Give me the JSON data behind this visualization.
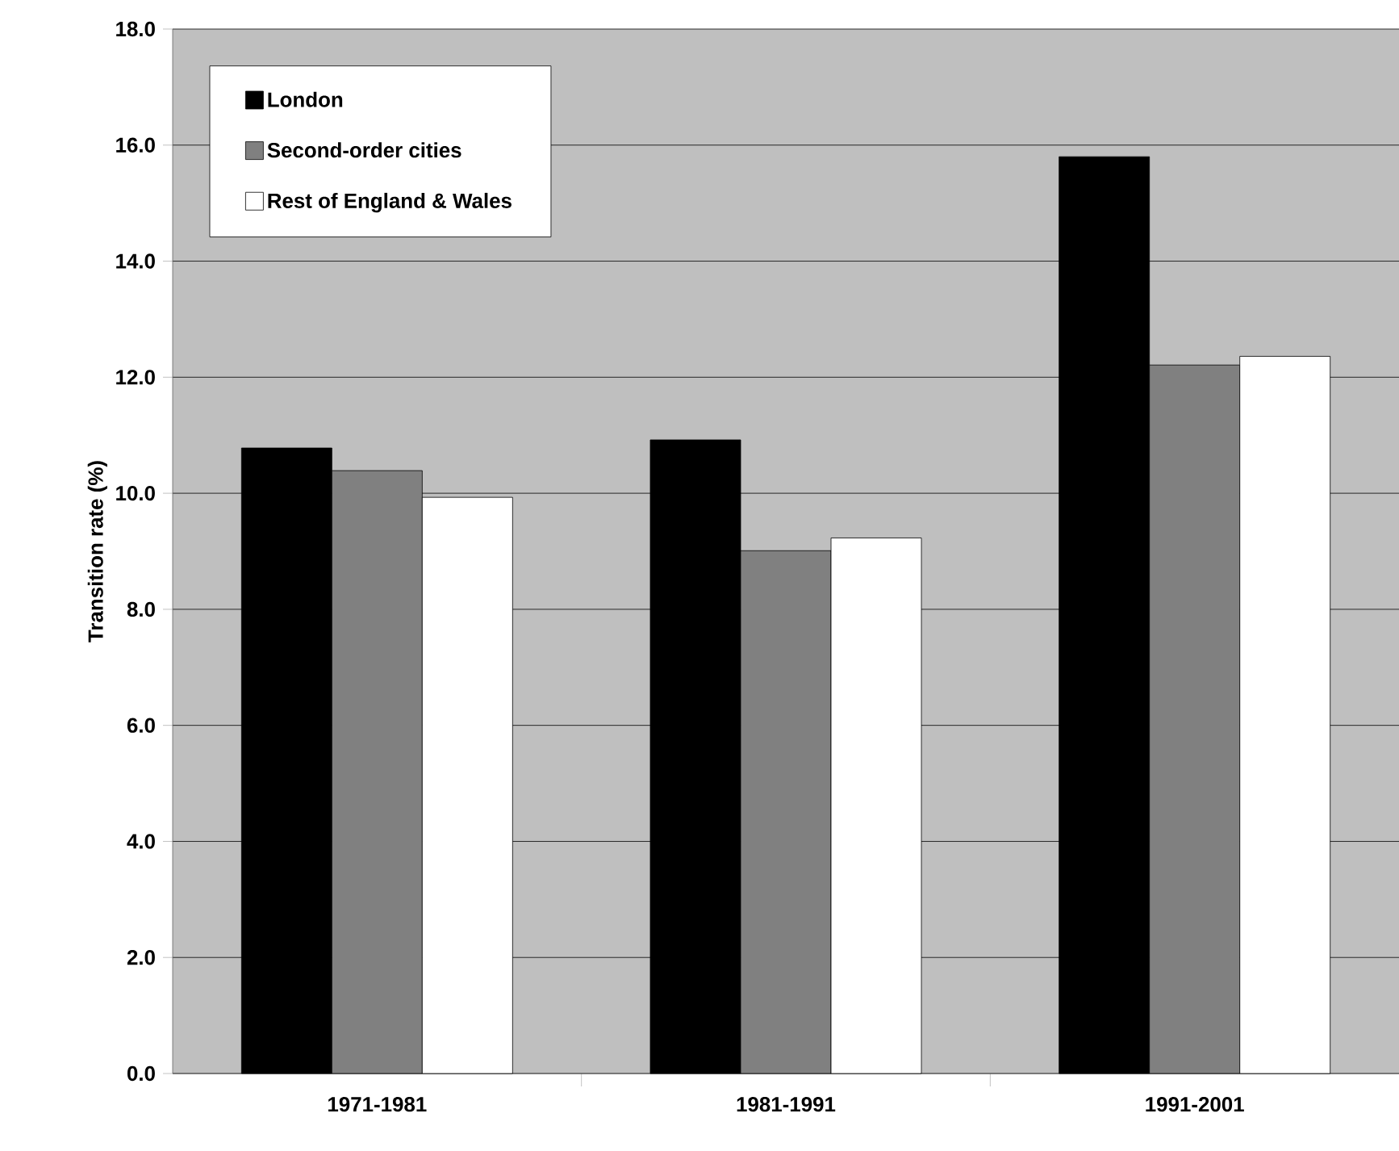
{
  "chart_data": {
    "type": "bar",
    "ylabel": "Transition rate (%)",
    "categories": [
      "1971-1981",
      "1981-1991",
      "1991-2001"
    ],
    "series": [
      {
        "name": "London",
        "color": "#000000",
        "values": [
          10.78,
          10.92,
          15.8
        ]
      },
      {
        "name": "Second-order cities",
        "color": "#808080",
        "values": [
          10.39,
          9.01,
          12.21
        ]
      },
      {
        "name": "Rest of England & Wales",
        "color": "#ffffff",
        "values": [
          9.93,
          9.23,
          12.36
        ]
      }
    ],
    "ylim": [
      0,
      18
    ],
    "yticks": [
      {
        "value": 0,
        "label": "0.0"
      },
      {
        "value": 2,
        "label": "2.0"
      },
      {
        "value": 4,
        "label": "4.0"
      },
      {
        "value": 6,
        "label": "6.0"
      },
      {
        "value": 8,
        "label": "8.0"
      },
      {
        "value": 10,
        "label": "10.0"
      },
      {
        "value": 12,
        "label": "12.0"
      },
      {
        "value": 14,
        "label": "14.0"
      },
      {
        "value": 16,
        "label": "16.0"
      },
      {
        "value": 18,
        "label": "18.0"
      }
    ],
    "grid": "y",
    "legend": "top left"
  }
}
